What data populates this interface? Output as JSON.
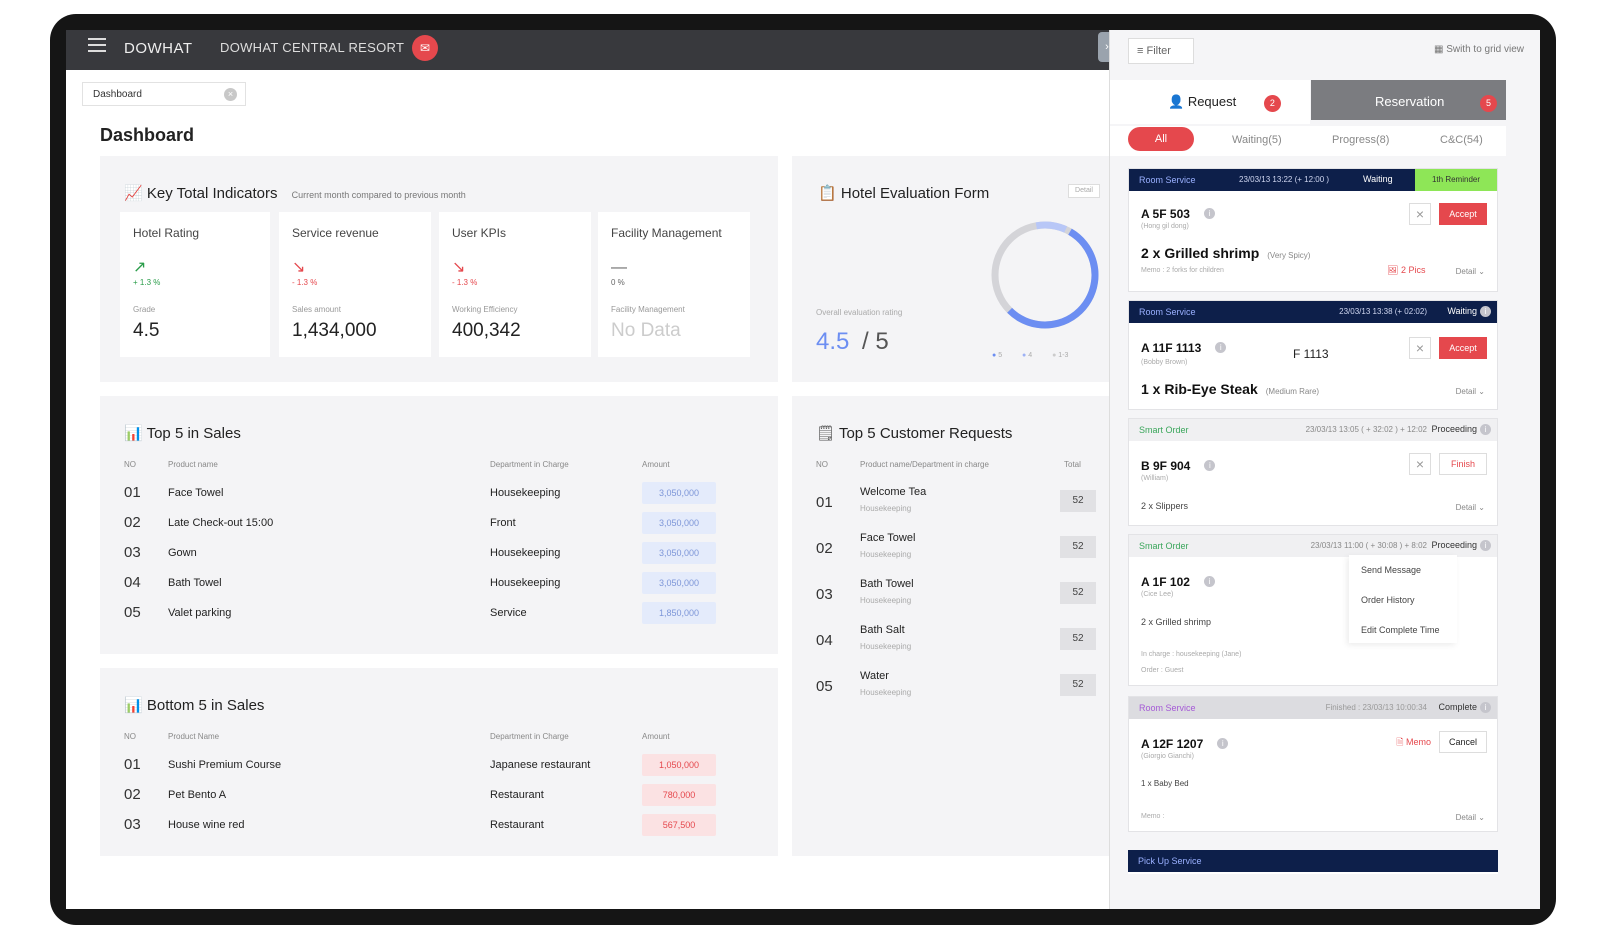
{
  "topbar": {
    "brand": "DOWHAT",
    "resort": "DOWHAT CENTRAL RESORT"
  },
  "breadcrumb": {
    "label": "Dashboard"
  },
  "page_title": "Dashboard",
  "kti": {
    "title": "Key Total Indicators",
    "subtitle": "Current month compared to previous month",
    "cards": [
      {
        "label": "Hotel Rating",
        "trend": "+ 1.3 %",
        "small": "Grade",
        "value": "4.5"
      },
      {
        "label": "Service revenue",
        "trend": "- 1.3 %",
        "small": "Sales amount",
        "value": "1,434,000"
      },
      {
        "label": "User KPIs",
        "trend": "- 1.3 %",
        "small": "Working Efficiency",
        "value": "400,342"
      },
      {
        "label": "Facility Management",
        "trend": "0 %",
        "small": "Facility Management",
        "value": "No Data"
      }
    ]
  },
  "eval": {
    "title": "Hotel Evaluation Form",
    "detail": "Detail",
    "caption": "Overall evaluation rating",
    "score": "4.5",
    "total": "/ 5",
    "legend": [
      "5",
      "4",
      "1-3"
    ]
  },
  "top5": {
    "title": "Top 5 in Sales",
    "headers": [
      "NO",
      "Product name",
      "Department in Charge",
      "Amount"
    ],
    "rows": [
      {
        "no": "01",
        "name": "Face Towel",
        "dept": "Housekeeping",
        "amount": "3,050,000"
      },
      {
        "no": "02",
        "name": "Late Check-out 15:00",
        "dept": "Front",
        "amount": "3,050,000"
      },
      {
        "no": "03",
        "name": "Gown",
        "dept": "Housekeeping",
        "amount": "3,050,000"
      },
      {
        "no": "04",
        "name": "Bath Towel",
        "dept": "Housekeeping",
        "amount": "3,050,000"
      },
      {
        "no": "05",
        "name": "Valet parking",
        "dept": "Service",
        "amount": "1,850,000"
      }
    ]
  },
  "bottom5": {
    "title": "Bottom 5 in Sales",
    "headers": [
      "NO",
      "Product Name",
      "Department in Charge",
      "Amount"
    ],
    "rows": [
      {
        "no": "01",
        "name": "Sushi Premium Course",
        "dept": "Japanese restaurant",
        "amount": "1,050,000"
      },
      {
        "no": "02",
        "name": "Pet Bento A",
        "dept": "Restaurant",
        "amount": "780,000"
      },
      {
        "no": "03",
        "name": "House wine red",
        "dept": "Restaurant",
        "amount": "567,500"
      }
    ]
  },
  "requests": {
    "title": "Top 5 Customer Requests",
    "headers": [
      "NO",
      "Product name/Department in charge",
      "Total"
    ],
    "rows": [
      {
        "no": "01",
        "name": "Welcome Tea",
        "dept": "Housekeeping",
        "total": "52"
      },
      {
        "no": "02",
        "name": "Face Towel",
        "dept": "Housekeeping",
        "total": "52"
      },
      {
        "no": "03",
        "name": "Bath Towel",
        "dept": "Housekeeping",
        "total": "52"
      },
      {
        "no": "04",
        "name": "Bath Salt",
        "dept": "Housekeeping",
        "total": "52"
      },
      {
        "no": "05",
        "name": "Water",
        "dept": "Housekeeping",
        "total": "52"
      }
    ]
  },
  "panel": {
    "filter": "Filter",
    "grid": "Swith to grid view",
    "request": "Request",
    "request_count": "2",
    "reservation": "Reservation",
    "reservation_count": "5",
    "tabs": {
      "all": "All",
      "waiting": "Waiting(5)",
      "progress": "Progress(8)",
      "cnc": "C&C(54)"
    },
    "orders": [
      {
        "type": "Room Service",
        "time": "23/03/13 13:22 (+ 12:00 )",
        "status": "Waiting",
        "reminder": "1th Reminder",
        "room": "A 5F 503",
        "guest": "(Hong gil dong)",
        "item": "2 x Grilled shrimp",
        "note": "(Very Spicy)",
        "memo": "Memo : 2 forks for children",
        "pics": "2 Pics",
        "detail": "Detail",
        "accept": "Accept"
      },
      {
        "type": "Room Service",
        "time": "23/03/13 13:38 (+ 02:02)",
        "status": "Waiting",
        "room": "A 11F 1113",
        "guest": "(Bobby Brown)",
        "floor": "F 1113",
        "item": "1 x Rib-Eye Steak",
        "note": "(Medium Rare)",
        "detail": "Detail",
        "accept": "Accept"
      },
      {
        "type": "Smart Order",
        "time": "23/03/13 13:05 ( + 32:02 ) + 12:02",
        "status": "Proceeding",
        "room": "B 9F 904",
        "guest": "(William)",
        "item": "2 x Slippers",
        "detail": "Detail",
        "finish": "Finish"
      },
      {
        "type": "Smart Order",
        "time": "23/03/13 11:00 ( + 30:08 ) + 8:02",
        "status": "Proceeding",
        "room": "A 1F 102",
        "guest": "(Cice Lee)",
        "item": "2 x Grilled shrimp",
        "charge": "In charge : housekeeping (Jane)",
        "order": "Order : Guest",
        "menu": [
          "Send Message",
          "Order History",
          "Edit Complete Time"
        ]
      },
      {
        "type": "Room Service",
        "time": "Finished : 23/03/13 10:00:34",
        "status": "Complete",
        "room": "A 12F 1207",
        "guest": "(Giorgio Gianchi)",
        "item": "1 x Baby Bed",
        "memo": "Memo :",
        "memo_btn": "Memo",
        "cancel": "Cancel",
        "detail": "Detail"
      },
      {
        "type": "Pick Up Service"
      }
    ]
  }
}
